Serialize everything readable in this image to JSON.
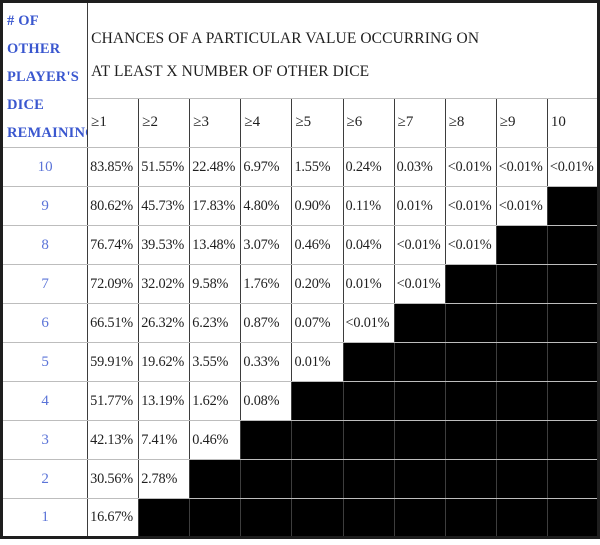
{
  "colors": {
    "corner_header_blue": "#3a57cf",
    "row_number_blue": "#5b74d8",
    "grid_vertical_dark": "#3d3d3d",
    "grid_horizontal_light": "#bdbdbd",
    "outer_border": "#1e1e1e",
    "empty_cell_fill": "#000000",
    "text": "#1f1f1f",
    "background": "#ffffff"
  },
  "chart_data": {
    "type": "table",
    "title": "CHANCES OF A PARTICULAR VALUE OCCURRING ON AT LEAST X NUMBER OF OTHER DICE",
    "title_lines": [
      "CHANCES OF A PARTICULAR VALUE OCCURRING ON",
      "AT LEAST X NUMBER OF OTHER DICE"
    ],
    "corner_header": "# OF OTHER PLAYER'S DICE REMAINING",
    "corner_header_lines": [
      "# OF",
      "OTHER",
      "PLAYER'S",
      "DICE",
      "REMAINING"
    ],
    "column_headers": [
      "≥1",
      "≥2",
      "≥3",
      "≥4",
      "≥5",
      "≥6",
      "≥7",
      "≥8",
      "≥9",
      "10"
    ],
    "rows": [
      {
        "dice_remaining": "10",
        "values": [
          "83.85%",
          "51.55%",
          "22.48%",
          "6.97%",
          "1.55%",
          "0.24%",
          "0.03%",
          "<0.01%",
          "<0.01%",
          "<0.01%"
        ]
      },
      {
        "dice_remaining": "9",
        "values": [
          "80.62%",
          "45.73%",
          "17.83%",
          "4.80%",
          "0.90%",
          "0.11%",
          "0.01%",
          "<0.01%",
          "<0.01%",
          null
        ]
      },
      {
        "dice_remaining": "8",
        "values": [
          "76.74%",
          "39.53%",
          "13.48%",
          "3.07%",
          "0.46%",
          "0.04%",
          "<0.01%",
          "<0.01%",
          null,
          null
        ]
      },
      {
        "dice_remaining": "7",
        "values": [
          "72.09%",
          "32.02%",
          "9.58%",
          "1.76%",
          "0.20%",
          "0.01%",
          "<0.01%",
          null,
          null,
          null
        ]
      },
      {
        "dice_remaining": "6",
        "values": [
          "66.51%",
          "26.32%",
          "6.23%",
          "0.87%",
          "0.07%",
          "<0.01%",
          null,
          null,
          null,
          null
        ]
      },
      {
        "dice_remaining": "5",
        "values": [
          "59.91%",
          "19.62%",
          "3.55%",
          "0.33%",
          "0.01%",
          null,
          null,
          null,
          null,
          null
        ]
      },
      {
        "dice_remaining": "4",
        "values": [
          "51.77%",
          "13.19%",
          "1.62%",
          "0.08%",
          null,
          null,
          null,
          null,
          null,
          null
        ]
      },
      {
        "dice_remaining": "3",
        "values": [
          "42.13%",
          "7.41%",
          "0.46%",
          null,
          null,
          null,
          null,
          null,
          null,
          null
        ]
      },
      {
        "dice_remaining": "2",
        "values": [
          "30.56%",
          "2.78%",
          null,
          null,
          null,
          null,
          null,
          null,
          null,
          null
        ]
      },
      {
        "dice_remaining": "1",
        "values": [
          "16.67%",
          null,
          null,
          null,
          null,
          null,
          null,
          null,
          null,
          null
        ]
      }
    ]
  }
}
